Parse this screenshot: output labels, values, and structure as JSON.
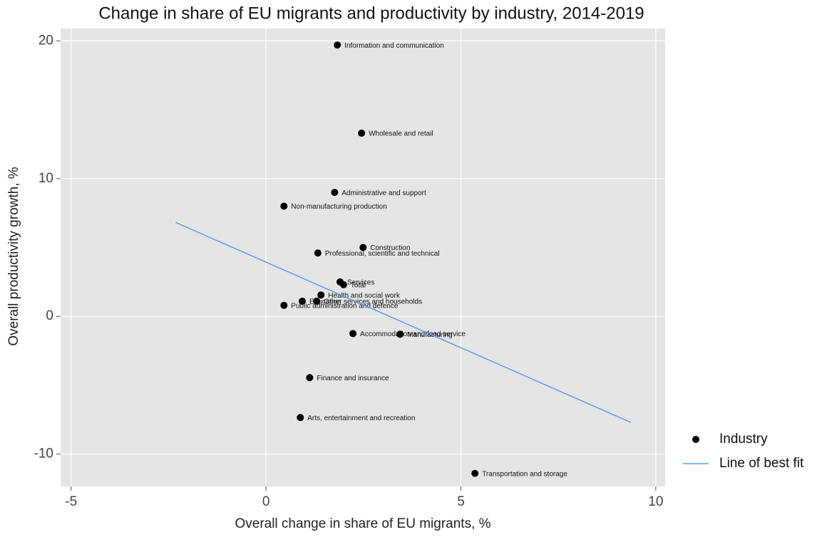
{
  "chart_data": {
    "type": "scatter",
    "title": "Change in share of EU migrants and productivity by industry, 2014-2019",
    "x_label": "Overall change in share of EU migrants, %",
    "y_label": "Overall productivity growth, %",
    "xlim": [
      -5.27,
      10.24
    ],
    "ylim": [
      -12.35,
      20.9
    ],
    "xticks": [
      -5,
      0,
      5,
      10
    ],
    "yticks": [
      20,
      10,
      0,
      -10
    ],
    "grid": true,
    "legend": "right",
    "series": [
      {
        "name": "Industry",
        "color": "#000000",
        "x": [
          1.83,
          2.45,
          1.76,
          0.46,
          2.49,
          1.33,
          1.9,
          1.99,
          1.41,
          0.93,
          1.3,
          0.46,
          2.23,
          3.44,
          1.12,
          0.88,
          5.36
        ],
        "y": [
          19.7,
          13.3,
          9.0,
          8.0,
          5.0,
          4.6,
          2.5,
          2.3,
          1.55,
          1.1,
          1.1,
          0.8,
          -1.25,
          -1.3,
          -4.45,
          -7.35,
          -11.4
        ],
        "labels": [
          "Information and communication",
          "Wholesale and retail",
          "Administrative and support",
          "Non-manufacturing production",
          "Construction",
          "Professional, scientific and technical",
          "Services",
          "Total",
          "Health and social work",
          "Education",
          "Other services and households",
          "Public administration and defence",
          "Accommodation and food service",
          "Manufacturing",
          "Finance and insurance",
          "Arts, entertainment and recreation",
          "Transportation and storage"
        ]
      },
      {
        "name": "Line of best fit",
        "color": "#5b9bf8",
        "x": [
          -2.32,
          9.36
        ],
        "y": [
          6.82,
          -7.7
        ]
      }
    ]
  }
}
